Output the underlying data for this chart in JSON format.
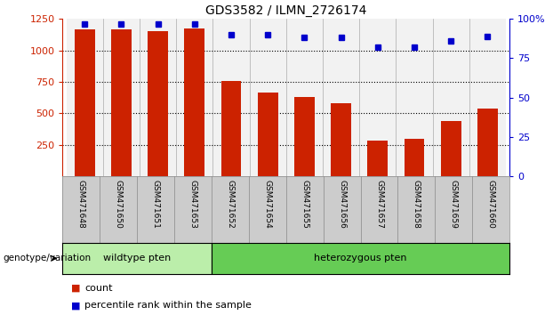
{
  "title": "GDS3582 / ILMN_2726174",
  "categories": [
    "GSM471648",
    "GSM471650",
    "GSM471651",
    "GSM471653",
    "GSM471652",
    "GSM471654",
    "GSM471655",
    "GSM471656",
    "GSM471657",
    "GSM471658",
    "GSM471659",
    "GSM471660"
  ],
  "counts": [
    1170,
    1165,
    1150,
    1175,
    755,
    665,
    630,
    580,
    285,
    295,
    440,
    540
  ],
  "percentiles": [
    97,
    97,
    97,
    97,
    90,
    90,
    88,
    88,
    82,
    82,
    86,
    89
  ],
  "ylim_left": [
    0,
    1250
  ],
  "ylim_right": [
    0,
    100
  ],
  "yticks_left": [
    250,
    500,
    750,
    1000,
    1250
  ],
  "yticks_right": [
    0,
    25,
    50,
    75,
    100
  ],
  "bar_color": "#cc2200",
  "dot_color": "#0000cc",
  "bg_color_wildtype": "#aaddaa",
  "bg_color_hetero": "#77cc77",
  "bg_color_samples": "#cccccc",
  "n_wildtype": 4,
  "n_hetero": 8,
  "wildtype_label": "wildtype pten",
  "hetero_label": "heterozygous pten",
  "genotype_label": "genotype/variation",
  "legend_count": "count",
  "legend_percentile": "percentile rank within the sample"
}
